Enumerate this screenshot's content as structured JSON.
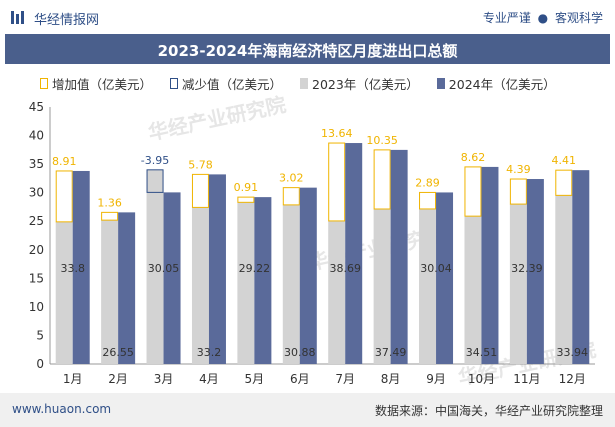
{
  "header": {
    "brand": "华经情报网",
    "slogan_left": "专业严谨",
    "slogan_dot": "●",
    "slogan_right": "客观科学"
  },
  "footer": {
    "url": "www.huaon.com",
    "source": "数据来源：中国海关，华经产业研究院整理"
  },
  "watermark": "华经产业研究院",
  "colors": {
    "title_bg": "#4a5f8c",
    "bar_2023": "#d3d3d3",
    "bar_2024": "#5a6a9a",
    "increase": "#f0b400",
    "decrease": "#2f4f87"
  },
  "chart_data": {
    "type": "bar",
    "title": "2023-2024年海南经济特区月度进出口总额",
    "categories": [
      "1月",
      "2月",
      "3月",
      "4月",
      "5月",
      "6月",
      "7月",
      "8月",
      "9月",
      "10月",
      "11月",
      "12月"
    ],
    "series": [
      {
        "name": "2023年（亿美元）",
        "values": [
          24.89,
          25.19,
          34.0,
          27.42,
          28.31,
          27.86,
          25.05,
          27.14,
          27.15,
          25.89,
          28.0,
          29.53
        ]
      },
      {
        "name": "2024年（亿美元）",
        "values": [
          33.8,
          26.55,
          30.05,
          33.2,
          29.22,
          30.88,
          38.69,
          37.49,
          30.04,
          34.51,
          32.39,
          33.94
        ]
      }
    ],
    "change_series": [
      {
        "name": "增加值（亿美元）"
      },
      {
        "name": "减少值（亿美元）"
      }
    ],
    "change_labels": [
      "8.91",
      "1.36",
      "-3.95",
      "5.78",
      "0.91",
      "3.02",
      "13.64",
      "10.35",
      "2.89",
      "8.62",
      "4.39",
      "4.41"
    ],
    "value_labels_2024": [
      "33.8",
      "26.55",
      "30.05",
      "33.2",
      "29.22",
      "30.88",
      "38.69",
      "37.49",
      "30.04",
      "34.51",
      "32.39",
      "33.94"
    ],
    "ylim": [
      0,
      45
    ],
    "yticks": [
      "0",
      "5",
      "10",
      "15",
      "20",
      "25",
      "30",
      "35",
      "40",
      "45"
    ],
    "xlabel": "",
    "ylabel": "",
    "grid": false,
    "legend_position": "top"
  }
}
